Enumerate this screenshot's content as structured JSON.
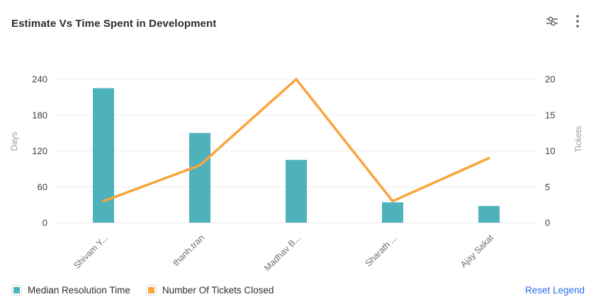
{
  "header": {
    "title": "Estimate Vs Time Spent in Development",
    "filter_icon": "filter-sliders-icon",
    "menu_icon": "kebab-menu-icon"
  },
  "legend": {
    "reset_label": "Reset Legend"
  },
  "colors": {
    "link": "#2570E8",
    "icon_gray": "#5f6368"
  },
  "chart_data": {
    "type": "combo",
    "title": "Estimate Vs Time Spent in Development",
    "categories": [
      "Shivam Y...",
      "thanh.tran",
      "Madhav B...",
      "Sharath ...",
      "Ajay Sakat"
    ],
    "series": [
      {
        "name": "Median Resolution Time",
        "type": "bar",
        "axis": "left",
        "color": "#4DB2BC",
        "values": [
          225,
          150,
          105,
          34,
          28
        ]
      },
      {
        "name": "Number Of Tickets Closed",
        "type": "line",
        "axis": "right",
        "color": "#F9A43C",
        "values": [
          3,
          8,
          20,
          3,
          9
        ]
      }
    ],
    "left_axis": {
      "label": "Days",
      "ticks": [
        0,
        60,
        120,
        180,
        240
      ],
      "min": 0,
      "max": 240
    },
    "right_axis": {
      "label": "Tickets",
      "ticks": [
        0,
        5,
        10,
        15,
        20
      ],
      "min": 0,
      "max": 20
    },
    "grid": true,
    "legend_position": "bottom",
    "style": {
      "grid_color": "#ededed",
      "tick_color": "#404040",
      "xlabel_color": "#6e6e6e",
      "axis_name_color": "#9b9b9b"
    }
  }
}
